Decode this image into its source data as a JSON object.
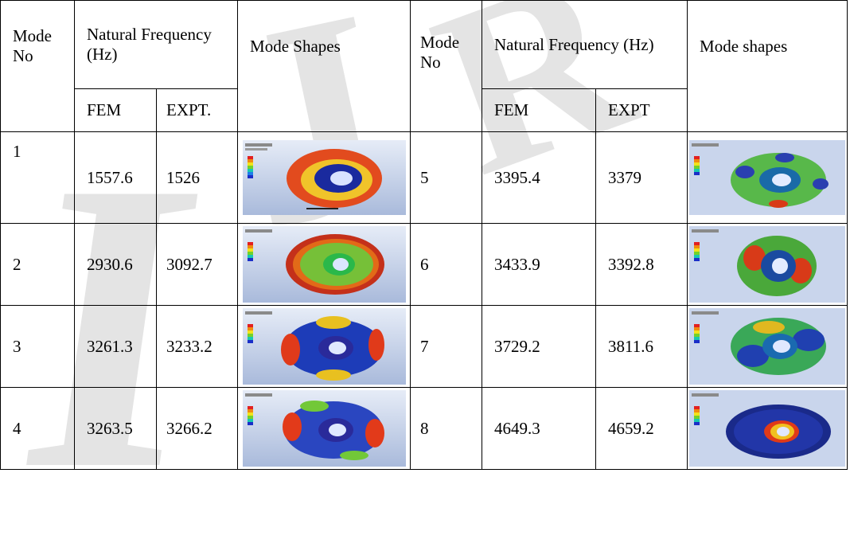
{
  "headers": {
    "mode_no": "Mode No",
    "natural_frequency_left": "Natural Frequency (Hz)",
    "mode_shapes_left": "Mode Shapes",
    "natural_frequency_right": "Natural Frequency (Hz)",
    "mode_shapes_right": "Mode shapes",
    "fem": "FEM",
    "expt_left": "EXPT.",
    "expt_right": "EXPT"
  },
  "rows": [
    {
      "mode_left": "1",
      "fem_left": "1557.6",
      "expt_left": "1526",
      "mode_right": "5",
      "fem_right": "3395.4",
      "expt_right": "3379"
    },
    {
      "mode_left": "2",
      "fem_left": "2930.6",
      "expt_left": "3092.7",
      "mode_right": "6",
      "fem_right": "3433.9",
      "expt_right": "3392.8"
    },
    {
      "mode_left": "3",
      "fem_left": "3261.3",
      "expt_left": "3233.2",
      "mode_right": "7",
      "fem_right": "3729.2",
      "expt_right": "3811.6"
    },
    {
      "mode_left": "4",
      "fem_left": "3263.5",
      "expt_left": "3266.2",
      "mode_right": "8",
      "fem_right": "4649.3",
      "expt_right": "4659.2"
    }
  ],
  "mode_shape_images": {
    "left": [
      "red-disc-dark-blue-hub",
      "red-ring-green-center",
      "blue-disc-red-lobes",
      "blue-disc-red-lobes-2"
    ],
    "right": [
      "green-disc-blue-spots",
      "green-disc-red-lobes",
      "green-blue-disc",
      "dark-blue-disc-red-hub"
    ]
  },
  "colors": {
    "watermark": "#e4e4e4",
    "fea_background": "#c7d3ea"
  }
}
